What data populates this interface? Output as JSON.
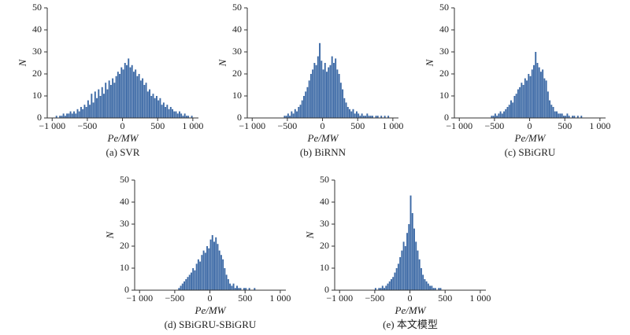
{
  "chart_data": [
    {
      "type": "histogram",
      "title": "(a) SVR",
      "xlabel": "Pe/MW",
      "ylabel": "N",
      "color": "#3d6aa6",
      "xlim": [
        -1070,
        1080
      ],
      "ylim": [
        0,
        50
      ],
      "xticks": [
        {
          "value": -1000,
          "label": "−1 000"
        },
        {
          "value": -500,
          "label": "−500"
        },
        0,
        500,
        {
          "value": 1000,
          "label": "1 000"
        }
      ],
      "yticks": [
        0,
        10,
        20,
        30,
        40,
        50
      ],
      "bins": [
        -950,
        -925,
        -900,
        -875,
        -850,
        -825,
        -800,
        -775,
        -750,
        -725,
        -700,
        -675,
        -650,
        -625,
        -600,
        -575,
        -550,
        -525,
        -500,
        -475,
        -450,
        -425,
        -400,
        -375,
        -350,
        -325,
        -300,
        -275,
        -250,
        -225,
        -200,
        -175,
        -150,
        -125,
        -100,
        -75,
        -50,
        -25,
        0,
        25,
        50,
        75,
        100,
        125,
        150,
        175,
        200,
        225,
        250,
        275,
        300,
        325,
        350,
        375,
        400,
        425,
        450,
        475,
        500,
        525,
        550,
        575,
        600,
        625,
        650,
        675,
        700,
        725,
        750,
        775,
        800,
        825,
        850,
        875,
        900,
        925,
        950,
        975,
        1000
      ],
      "values": [
        1,
        0,
        1,
        1,
        2,
        1,
        2,
        2,
        3,
        2,
        3,
        2,
        4,
        3,
        5,
        4,
        6,
        5,
        8,
        6,
        11,
        7,
        12,
        9,
        13,
        10,
        14,
        11,
        16,
        13,
        17,
        15,
        18,
        16,
        19,
        21,
        20,
        23,
        22,
        25,
        24,
        27,
        23,
        24,
        21,
        22,
        19,
        20,
        17,
        18,
        15,
        16,
        12,
        13,
        10,
        11,
        9,
        10,
        8,
        9,
        6,
        7,
        5,
        6,
        4,
        5,
        4,
        3,
        3,
        2,
        3,
        2,
        1,
        2,
        1,
        1,
        0,
        1
      ]
    },
    {
      "type": "histogram",
      "title": "(b) BiRNN",
      "xlabel": "Pe/MW",
      "ylabel": "N",
      "color": "#3d6aa6",
      "xlim": [
        -1070,
        1080
      ],
      "ylim": [
        0,
        50
      ],
      "xticks": [
        {
          "value": -1000,
          "label": "−1 000"
        },
        {
          "value": -500,
          "label": "−500"
        },
        0,
        500,
        {
          "value": 1000,
          "label": "1 000"
        }
      ],
      "yticks": [
        0,
        10,
        20,
        30,
        40,
        50
      ],
      "bins": [
        -550,
        -525,
        -500,
        -475,
        -450,
        -425,
        -400,
        -375,
        -350,
        -325,
        -300,
        -275,
        -250,
        -225,
        -200,
        -175,
        -150,
        -125,
        -100,
        -75,
        -50,
        -25,
        0,
        25,
        50,
        75,
        100,
        125,
        150,
        175,
        200,
        225,
        250,
        275,
        300,
        325,
        350,
        375,
        400,
        425,
        450,
        475,
        500,
        525,
        550,
        575,
        600,
        625,
        650,
        675,
        700,
        725,
        750,
        775,
        800,
        825,
        850,
        875,
        900,
        925,
        950
      ],
      "values": [
        1,
        1,
        2,
        1,
        3,
        2,
        4,
        3,
        5,
        6,
        8,
        10,
        12,
        14,
        17,
        20,
        22,
        25,
        24,
        28,
        34,
        26,
        22,
        25,
        21,
        23,
        24,
        28,
        25,
        27,
        22,
        20,
        16,
        13,
        9,
        7,
        5,
        4,
        3,
        4,
        2,
        3,
        2,
        1,
        2,
        1,
        1,
        2,
        1,
        1,
        1,
        0,
        1,
        1,
        0,
        1,
        0,
        1,
        0,
        1
      ]
    },
    {
      "type": "histogram",
      "title": "(c) SBiGRU",
      "xlabel": "Pe/MW",
      "ylabel": "N",
      "color": "#3d6aa6",
      "xlim": [
        -1070,
        1080
      ],
      "ylim": [
        0,
        50
      ],
      "xticks": [
        {
          "value": -1000,
          "label": "−1 000"
        },
        {
          "value": -500,
          "label": "−500"
        },
        0,
        500,
        {
          "value": 1000,
          "label": "1 000"
        }
      ],
      "yticks": [
        0,
        10,
        20,
        30,
        40,
        50
      ],
      "bins": [
        -550,
        -525,
        -500,
        -475,
        -450,
        -425,
        -400,
        -375,
        -350,
        -325,
        -300,
        -275,
        -250,
        -225,
        -200,
        -175,
        -150,
        -125,
        -100,
        -75,
        -50,
        -25,
        0,
        25,
        50,
        75,
        100,
        125,
        150,
        175,
        200,
        225,
        250,
        275,
        300,
        325,
        350,
        375,
        400,
        425,
        450,
        475,
        500,
        525,
        550,
        575,
        600,
        625,
        650,
        675,
        700,
        725,
        750
      ],
      "values": [
        1,
        1,
        2,
        1,
        2,
        3,
        2,
        3,
        4,
        5,
        6,
        8,
        7,
        10,
        11,
        13,
        14,
        16,
        15,
        18,
        17,
        20,
        19,
        22,
        24,
        30,
        25,
        23,
        21,
        22,
        18,
        17,
        12,
        8,
        6,
        5,
        3,
        3,
        2,
        2,
        2,
        1,
        1,
        2,
        1,
        0,
        1,
        1,
        0,
        1,
        0,
        1
      ]
    },
    {
      "type": "histogram",
      "title": "(d) SBiGRU-SBiGRU",
      "xlabel": "Pe/MW",
      "ylabel": "N",
      "color": "#3d6aa6",
      "xlim": [
        -1070,
        1080
      ],
      "ylim": [
        0,
        50
      ],
      "xticks": [
        {
          "value": -1000,
          "label": "−1 000"
        },
        {
          "value": -500,
          "label": "−500"
        },
        0,
        500,
        {
          "value": 1000,
          "label": "1 000"
        }
      ],
      "yticks": [
        0,
        10,
        20,
        30,
        40,
        50
      ],
      "bins": [
        -450,
        -425,
        -400,
        -375,
        -350,
        -325,
        -300,
        -275,
        -250,
        -225,
        -200,
        -175,
        -150,
        -125,
        -100,
        -75,
        -50,
        -25,
        0,
        25,
        50,
        75,
        100,
        125,
        150,
        175,
        200,
        225,
        250,
        275,
        300,
        325,
        350,
        375,
        400,
        425,
        450,
        475,
        500,
        525,
        550,
        575,
        600,
        625,
        650
      ],
      "values": [
        1,
        2,
        3,
        4,
        5,
        6,
        7,
        8,
        10,
        9,
        12,
        14,
        13,
        16,
        18,
        17,
        20,
        19,
        23,
        25,
        22,
        24,
        21,
        18,
        16,
        14,
        10,
        7,
        5,
        3,
        2,
        3,
        1,
        2,
        1,
        1,
        0,
        1,
        1,
        0,
        1,
        0,
        0,
        1
      ]
    },
    {
      "type": "histogram",
      "title": "(e) 本文模型",
      "xlabel": "Pe/MW",
      "ylabel": "N",
      "color": "#3d6aa6",
      "xlim": [
        -1070,
        1080
      ],
      "ylim": [
        0,
        50
      ],
      "xticks": [
        {
          "value": -1000,
          "label": "−1 000"
        },
        {
          "value": -500,
          "label": "−500"
        },
        0,
        500,
        {
          "value": 1000,
          "label": "1 000"
        }
      ],
      "yticks": [
        0,
        10,
        20,
        30,
        40,
        50
      ],
      "bins": [
        -500,
        -475,
        -450,
        -425,
        -400,
        -375,
        -350,
        -325,
        -300,
        -275,
        -250,
        -225,
        -200,
        -175,
        -150,
        -125,
        -100,
        -75,
        -50,
        -25,
        0,
        25,
        50,
        75,
        100,
        125,
        150,
        175,
        200,
        225,
        250,
        275,
        300,
        325,
        350,
        375,
        400,
        425,
        450
      ],
      "values": [
        1,
        0,
        1,
        1,
        2,
        1,
        2,
        3,
        4,
        5,
        6,
        8,
        10,
        12,
        15,
        18,
        22,
        20,
        26,
        30,
        43,
        35,
        28,
        22,
        18,
        14,
        10,
        7,
        5,
        4,
        3,
        2,
        2,
        1,
        1,
        0,
        1,
        1
      ]
    }
  ]
}
